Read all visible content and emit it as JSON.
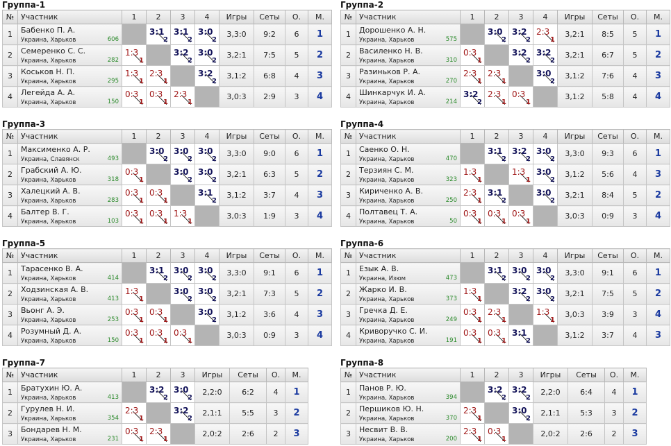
{
  "groups": [
    {
      "title": "Группа-1",
      "header": [
        "№",
        "Участник",
        "1",
        "2",
        "3",
        "4",
        "Игры",
        "Сеты",
        "О.",
        "М."
      ],
      "rows": [
        {
          "num": 1,
          "name": "Бабенко П. А.",
          "location": "Украина, Харьков",
          "rating": 606,
          "results": [
            null,
            {
              "score": "3:1",
              "points": 2
            },
            {
              "score": "3:1",
              "points": 2
            },
            {
              "score": "3:0",
              "points": 2
            }
          ],
          "games": "3,3:0",
          "sets": "9:2",
          "points": 6,
          "place": 1
        },
        {
          "num": 2,
          "name": "Семеренко С. С.",
          "location": "Украина, Харьков",
          "rating": 282,
          "results": [
            {
              "score": "1:3",
              "points": 1
            },
            null,
            {
              "score": "3:2",
              "points": 2
            },
            {
              "score": "3:0",
              "points": 2
            }
          ],
          "games": "3,2:1",
          "sets": "7:5",
          "points": 5,
          "place": 2
        },
        {
          "num": 3,
          "name": "Коськов Н. П.",
          "location": "Украина, Харьков",
          "rating": 295,
          "results": [
            {
              "score": "1:3",
              "points": 1
            },
            {
              "score": "2:3",
              "points": 1
            },
            null,
            {
              "score": "3:2",
              "points": 2
            }
          ],
          "games": "3,1:2",
          "sets": "6:8",
          "points": 4,
          "place": 3
        },
        {
          "num": 4,
          "name": "Легейда А. А.",
          "location": "Украина, Харьков",
          "rating": 150,
          "results": [
            {
              "score": "0:3",
              "points": 1
            },
            {
              "score": "0:3",
              "points": 1
            },
            {
              "score": "2:3",
              "points": 1
            },
            null
          ],
          "games": "3,0:3",
          "sets": "2:9",
          "points": 3,
          "place": 4
        }
      ]
    },
    {
      "title": "Группа-2",
      "header": [
        "№",
        "Участник",
        "1",
        "2",
        "3",
        "4",
        "Игры",
        "Сеты",
        "О.",
        "М."
      ],
      "rows": [
        {
          "num": 1,
          "name": "Дорошенко А. Н.",
          "location": "Украина, Харьков",
          "rating": 575,
          "results": [
            null,
            {
              "score": "3:0",
              "points": 2
            },
            {
              "score": "3:2",
              "points": 2
            },
            {
              "score": "2:3",
              "points": 1
            }
          ],
          "games": "3,2:1",
          "sets": "8:5",
          "points": 5,
          "place": 1
        },
        {
          "num": 2,
          "name": "Василенко Н. В.",
          "location": "Украина, Харьков",
          "rating": 310,
          "results": [
            {
              "score": "0:3",
              "points": 1
            },
            null,
            {
              "score": "3:2",
              "points": 2
            },
            {
              "score": "3:2",
              "points": 2
            }
          ],
          "games": "3,2:1",
          "sets": "6:7",
          "points": 5,
          "place": 2
        },
        {
          "num": 3,
          "name": "Разиньков Р. А.",
          "location": "Украина, Харьков",
          "rating": 270,
          "results": [
            {
              "score": "2:3",
              "points": 1
            },
            {
              "score": "2:3",
              "points": 1
            },
            null,
            {
              "score": "3:0",
              "points": 2
            }
          ],
          "games": "3,1:2",
          "sets": "7:6",
          "points": 4,
          "place": 3
        },
        {
          "num": 4,
          "name": "Шинкарчук И. А.",
          "location": "Украина, Харьков",
          "rating": 214,
          "results": [
            {
              "score": "3:2",
              "points": 2
            },
            {
              "score": "2:3",
              "points": 1
            },
            {
              "score": "0:3",
              "points": 1
            },
            null
          ],
          "games": "3,1:2",
          "sets": "5:8",
          "points": 4,
          "place": 4
        }
      ]
    },
    {
      "title": "Группа-3",
      "header": [
        "№",
        "Участник",
        "1",
        "2",
        "3",
        "4",
        "Игры",
        "Сеты",
        "О.",
        "М."
      ],
      "rows": [
        {
          "num": 1,
          "name": "Максименко А. Р.",
          "location": "Украина, Славянск",
          "rating": 493,
          "results": [
            null,
            {
              "score": "3:0",
              "points": 2
            },
            {
              "score": "3:0",
              "points": 2
            },
            {
              "score": "3:0",
              "points": 2
            }
          ],
          "games": "3,3:0",
          "sets": "9:0",
          "points": 6,
          "place": 1
        },
        {
          "num": 2,
          "name": "Грабский А. Ю.",
          "location": "Украина, Харьков",
          "rating": 318,
          "results": [
            {
              "score": "0:3",
              "points": 1
            },
            null,
            {
              "score": "3:0",
              "points": 2
            },
            {
              "score": "3:0",
              "points": 2
            }
          ],
          "games": "3,2:1",
          "sets": "6:3",
          "points": 5,
          "place": 2
        },
        {
          "num": 3,
          "name": "Халецкий А. В.",
          "location": "Украина, Харьков",
          "rating": 283,
          "results": [
            {
              "score": "0:3",
              "points": 1
            },
            {
              "score": "0:3",
              "points": 1
            },
            null,
            {
              "score": "3:1",
              "points": 2
            }
          ],
          "games": "3,1:2",
          "sets": "3:7",
          "points": 4,
          "place": 3
        },
        {
          "num": 4,
          "name": "Балтер В. Г.",
          "location": "Украина, Харьков",
          "rating": 103,
          "results": [
            {
              "score": "0:3",
              "points": 1
            },
            {
              "score": "0:3",
              "points": 1
            },
            {
              "score": "1:3",
              "points": 1
            },
            null
          ],
          "games": "3,0:3",
          "sets": "1:9",
          "points": 3,
          "place": 4
        }
      ]
    },
    {
      "title": "Группа-4",
      "header": [
        "№",
        "Участник",
        "1",
        "2",
        "3",
        "4",
        "Игры",
        "Сеты",
        "О.",
        "М."
      ],
      "rows": [
        {
          "num": 1,
          "name": "Саенко О. Н.",
          "location": "Украина, Харьков",
          "rating": 470,
          "results": [
            null,
            {
              "score": "3:1",
              "points": 2
            },
            {
              "score": "3:2",
              "points": 2
            },
            {
              "score": "3:0",
              "points": 2
            }
          ],
          "games": "3,3:0",
          "sets": "9:3",
          "points": 6,
          "place": 1
        },
        {
          "num": 2,
          "name": "Терзиян С. М.",
          "location": "Украина, Харьков",
          "rating": 323,
          "results": [
            {
              "score": "1:3",
              "points": 1
            },
            null,
            {
              "score": "1:3",
              "points": 1
            },
            {
              "score": "3:0",
              "points": 2
            }
          ],
          "games": "3,1:2",
          "sets": "5:6",
          "points": 4,
          "place": 3
        },
        {
          "num": 3,
          "name": "Кириченко А. В.",
          "location": "Украина, Харьков",
          "rating": 250,
          "results": [
            {
              "score": "2:3",
              "points": 1
            },
            {
              "score": "3:1",
              "points": 2
            },
            null,
            {
              "score": "3:0",
              "points": 2
            }
          ],
          "games": "3,2:1",
          "sets": "8:4",
          "points": 5,
          "place": 2
        },
        {
          "num": 4,
          "name": "Полтавец Т. А.",
          "location": "Украина, Харьков",
          "rating": 50,
          "results": [
            {
              "score": "0:3",
              "points": 1
            },
            {
              "score": "0:3",
              "points": 1
            },
            {
              "score": "0:3",
              "points": 1
            },
            null
          ],
          "games": "3,0:3",
          "sets": "0:9",
          "points": 3,
          "place": 4
        }
      ]
    },
    {
      "title": "Группа-5",
      "header": [
        "№",
        "Участник",
        "1",
        "2",
        "3",
        "4",
        "Игры",
        "Сеты",
        "О.",
        "М."
      ],
      "rows": [
        {
          "num": 1,
          "name": "Тарасенко В. А.",
          "location": "Украина, Харьков",
          "rating": 414,
          "results": [
            null,
            {
              "score": "3:1",
              "points": 2
            },
            {
              "score": "3:0",
              "points": 2
            },
            {
              "score": "3:0",
              "points": 2
            }
          ],
          "games": "3,3:0",
          "sets": "9:1",
          "points": 6,
          "place": 1
        },
        {
          "num": 2,
          "name": "Ходзинская А. В.",
          "location": "Украина, Харьков",
          "rating": 413,
          "results": [
            {
              "score": "1:3",
              "points": 1
            },
            null,
            {
              "score": "3:0",
              "points": 2
            },
            {
              "score": "3:0",
              "points": 2
            }
          ],
          "games": "3,2:1",
          "sets": "7:3",
          "points": 5,
          "place": 2
        },
        {
          "num": 3,
          "name": "Вьонг А. Э.",
          "location": "Украина, Харьков",
          "rating": 253,
          "results": [
            {
              "score": "0:3",
              "points": 1
            },
            {
              "score": "0:3",
              "points": 1
            },
            null,
            {
              "score": "3:0",
              "points": 2
            }
          ],
          "games": "3,1:2",
          "sets": "3:6",
          "points": 4,
          "place": 3
        },
        {
          "num": 4,
          "name": "Розумный Д. А.",
          "location": "Украина, Харьков",
          "rating": 150,
          "results": [
            {
              "score": "0:3",
              "points": 1
            },
            {
              "score": "0:3",
              "points": 1
            },
            {
              "score": "0:3",
              "points": 1
            },
            null
          ],
          "games": "3,0:3",
          "sets": "0:9",
          "points": 3,
          "place": 4
        }
      ]
    },
    {
      "title": "Группа-6",
      "header": [
        "№",
        "Участник",
        "1",
        "2",
        "3",
        "4",
        "Игры",
        "Сеты",
        "О.",
        "М."
      ],
      "rows": [
        {
          "num": 1,
          "name": "Езык А. В.",
          "location": "Украина, Изюм",
          "rating": 473,
          "results": [
            null,
            {
              "score": "3:1",
              "points": 2
            },
            {
              "score": "3:0",
              "points": 2
            },
            {
              "score": "3:0",
              "points": 2
            }
          ],
          "games": "3,3:0",
          "sets": "9:1",
          "points": 6,
          "place": 1
        },
        {
          "num": 2,
          "name": "Жарко И. В.",
          "location": "Украина, Харьков",
          "rating": 373,
          "results": [
            {
              "score": "1:3",
              "points": 1
            },
            null,
            {
              "score": "3:2",
              "points": 2
            },
            {
              "score": "3:0",
              "points": 2
            }
          ],
          "games": "3,2:1",
          "sets": "7:5",
          "points": 5,
          "place": 2
        },
        {
          "num": 3,
          "name": "Гречка Д. Е.",
          "location": "Украина, Харьков",
          "rating": 249,
          "results": [
            {
              "score": "0:3",
              "points": 1
            },
            {
              "score": "2:3",
              "points": 1
            },
            null,
            {
              "score": "1:3",
              "points": 1
            }
          ],
          "games": "3,0:3",
          "sets": "3:9",
          "points": 3,
          "place": 4
        },
        {
          "num": 4,
          "name": "Криворучко С. И.",
          "location": "Украина, Харьков",
          "rating": 191,
          "results": [
            {
              "score": "0:3",
              "points": 1
            },
            {
              "score": "0:3",
              "points": 1
            },
            {
              "score": "3:1",
              "points": 2
            },
            null
          ],
          "games": "3,1:2",
          "sets": "3:7",
          "points": 4,
          "place": 3
        }
      ]
    },
    {
      "title": "Группа-7",
      "header": [
        "№",
        "Участник",
        "1",
        "2",
        "3",
        "Игры",
        "Сеты",
        "О.",
        "М."
      ],
      "rows": [
        {
          "num": 1,
          "name": "Братухин Ю. А.",
          "location": "Украина, Харьков",
          "rating": 413,
          "results": [
            null,
            {
              "score": "3:2",
              "points": 2
            },
            {
              "score": "3:0",
              "points": 2
            }
          ],
          "games": "2,2:0",
          "sets": "6:2",
          "points": 4,
          "place": 1
        },
        {
          "num": 2,
          "name": "Гурулев Н. И.",
          "location": "Украина, Харьков",
          "rating": 354,
          "results": [
            {
              "score": "2:3",
              "points": 1
            },
            null,
            {
              "score": "3:2",
              "points": 2
            }
          ],
          "games": "2,1:1",
          "sets": "5:5",
          "points": 3,
          "place": 2
        },
        {
          "num": 3,
          "name": "Бондарев Н. М.",
          "location": "Украина, Харьков",
          "rating": 231,
          "results": [
            {
              "score": "0:3",
              "points": 1
            },
            {
              "score": "2:3",
              "points": 1
            },
            null
          ],
          "games": "2,0:2",
          "sets": "2:6",
          "points": 2,
          "place": 3
        }
      ]
    },
    {
      "title": "Группа-8",
      "header": [
        "№",
        "Участник",
        "1",
        "2",
        "3",
        "Игры",
        "Сеты",
        "О.",
        "М."
      ],
      "rows": [
        {
          "num": 1,
          "name": "Панов Р. Ю.",
          "location": "Украина, Харьков",
          "rating": 394,
          "results": [
            null,
            {
              "score": "3:2",
              "points": 2
            },
            {
              "score": "3:2",
              "points": 2
            }
          ],
          "games": "2,2:0",
          "sets": "6:4",
          "points": 4,
          "place": 1
        },
        {
          "num": 2,
          "name": "Першиков Ю. Н.",
          "location": "Украина, Харьков",
          "rating": 370,
          "results": [
            {
              "score": "2:3",
              "points": 1
            },
            null,
            {
              "score": "3:0",
              "points": 2
            }
          ],
          "games": "2,1:1",
          "sets": "5:3",
          "points": 3,
          "place": 2
        },
        {
          "num": 3,
          "name": "Несвит В. В.",
          "location": "Украина, Харьков",
          "rating": 200,
          "results": [
            {
              "score": "2:3",
              "points": 1
            },
            {
              "score": "0:3",
              "points": 1
            },
            null
          ],
          "games": "2,0:2",
          "sets": "2:6",
          "points": 2,
          "place": 3
        }
      ]
    }
  ]
}
